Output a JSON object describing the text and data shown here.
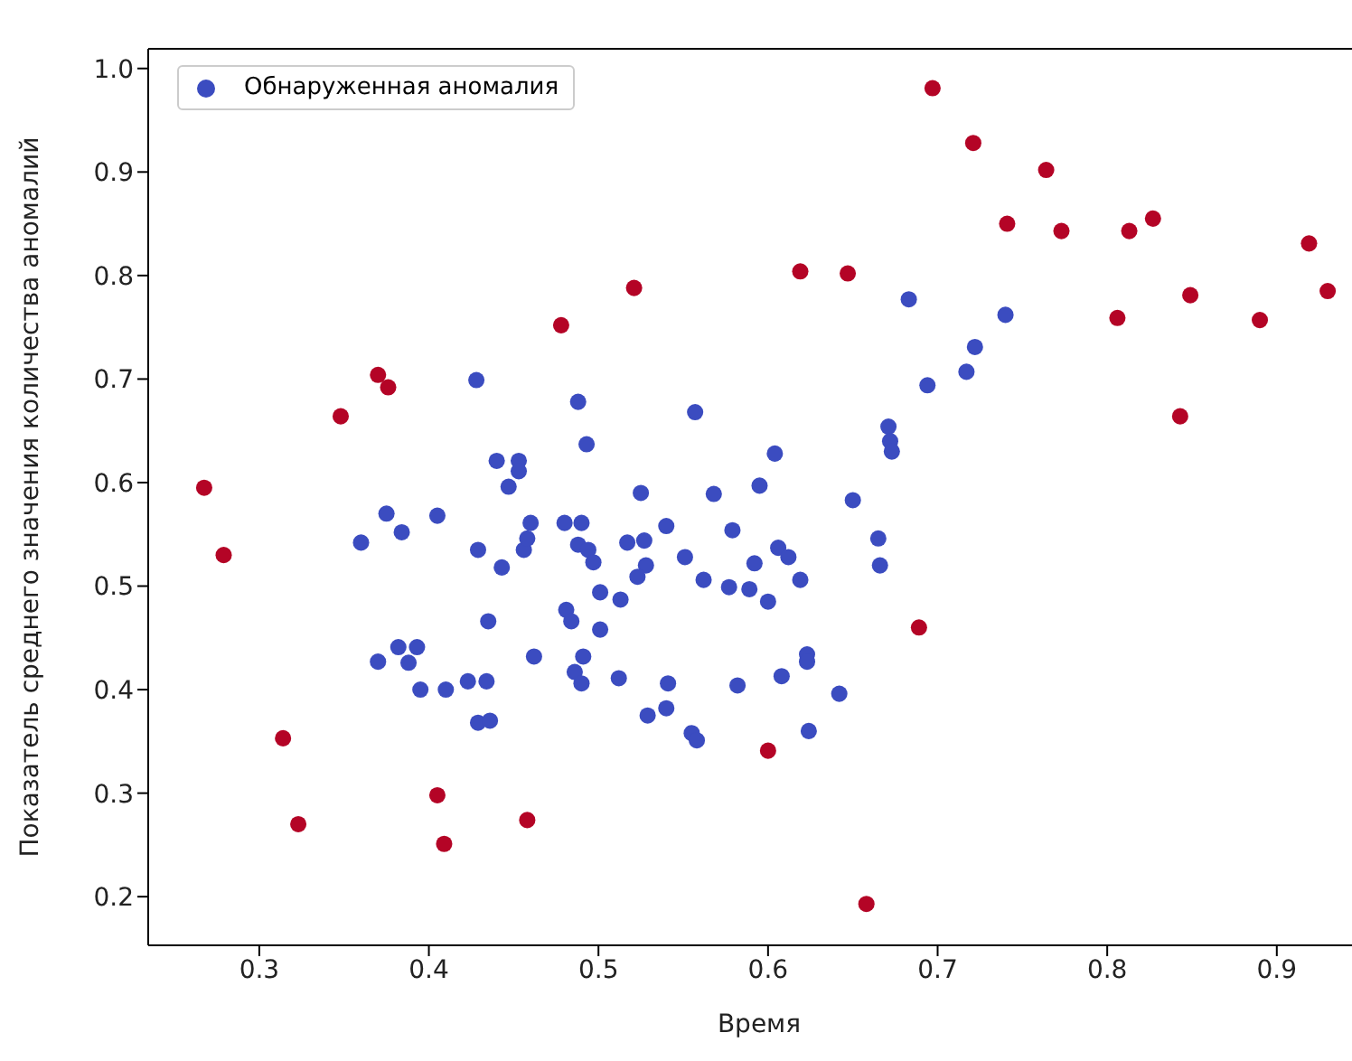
{
  "chart_data": {
    "type": "scatter",
    "xlabel": "Время",
    "ylabel": "Показатель среднего значения количества аномалий",
    "xlim": [
      0.2345,
      0.955
    ],
    "ylim": [
      0.153,
      1.019
    ],
    "xticks": [
      0.3,
      0.4,
      0.5,
      0.6,
      0.7,
      0.8,
      0.9
    ],
    "yticks": [
      0.2,
      0.3,
      0.4,
      0.5,
      0.6,
      0.7,
      0.8,
      0.9,
      {
        "value": 1,
        "label": "1.0"
      }
    ],
    "grid": false,
    "legend": "top left",
    "marker": "circle",
    "series": [
      {
        "name": "Обнаруженная аномалия",
        "color": "#3b4cc0",
        "x": [
          0.683,
          0.74,
          0.722,
          0.717,
          0.694,
          0.671,
          0.672,
          0.673,
          0.604,
          0.595,
          0.65,
          0.428,
          0.488,
          0.493,
          0.557,
          0.44,
          0.453,
          0.453,
          0.447,
          0.525,
          0.568,
          0.375,
          0.405,
          0.384,
          0.36,
          0.429,
          0.443,
          0.456,
          0.458,
          0.46,
          0.48,
          0.49,
          0.488,
          0.494,
          0.497,
          0.517,
          0.527,
          0.54,
          0.551,
          0.579,
          0.562,
          0.577,
          0.589,
          0.528,
          0.523,
          0.501,
          0.513,
          0.435,
          0.481,
          0.484,
          0.501,
          0.37,
          0.382,
          0.393,
          0.388,
          0.462,
          0.486,
          0.491,
          0.49,
          0.512,
          0.541,
          0.582,
          0.395,
          0.41,
          0.423,
          0.434,
          0.429,
          0.436,
          0.529,
          0.54,
          0.555,
          0.558,
          0.665,
          0.666,
          0.606,
          0.612,
          0.592,
          0.619,
          0.6,
          0.623,
          0.623,
          0.608,
          0.642,
          0.624
        ],
        "values": [
          0.777,
          0.762,
          0.731,
          0.707,
          0.694,
          0.654,
          0.64,
          0.63,
          0.628,
          0.597,
          0.583,
          0.699,
          0.678,
          0.637,
          0.668,
          0.621,
          0.621,
          0.611,
          0.596,
          0.59,
          0.589,
          0.57,
          0.568,
          0.552,
          0.542,
          0.535,
          0.518,
          0.535,
          0.546,
          0.561,
          0.561,
          0.561,
          0.54,
          0.535,
          0.523,
          0.542,
          0.544,
          0.558,
          0.528,
          0.554,
          0.506,
          0.499,
          0.497,
          0.52,
          0.509,
          0.494,
          0.487,
          0.466,
          0.477,
          0.466,
          0.458,
          0.427,
          0.441,
          0.441,
          0.426,
          0.432,
          0.417,
          0.432,
          0.406,
          0.411,
          0.406,
          0.404,
          0.4,
          0.4,
          0.408,
          0.408,
          0.368,
          0.37,
          0.375,
          0.382,
          0.358,
          0.351,
          0.546,
          0.52,
          0.537,
          0.528,
          0.522,
          0.506,
          0.485,
          0.434,
          0.427,
          0.413,
          0.396,
          0.36
        ]
      },
      {
        "color": "#b40426",
        "x": [
          0.2675,
          0.279,
          0.314,
          0.323,
          0.348,
          0.37,
          0.376,
          0.405,
          0.409,
          0.458,
          0.478,
          0.521,
          0.619,
          0.647,
          0.658,
          0.689,
          0.697,
          0.721,
          0.741,
          0.764,
          0.773,
          0.806,
          0.813,
          0.827,
          0.843,
          0.849,
          0.89,
          0.919,
          0.93,
          0.6
        ],
        "values": [
          0.595,
          0.53,
          0.353,
          0.27,
          0.664,
          0.704,
          0.692,
          0.298,
          0.251,
          0.274,
          0.752,
          0.788,
          0.804,
          0.802,
          0.193,
          0.46,
          0.981,
          0.928,
          0.85,
          0.902,
          0.843,
          0.759,
          0.843,
          0.855,
          0.664,
          0.781,
          0.757,
          0.831,
          0.785,
          0.341
        ]
      }
    ]
  }
}
